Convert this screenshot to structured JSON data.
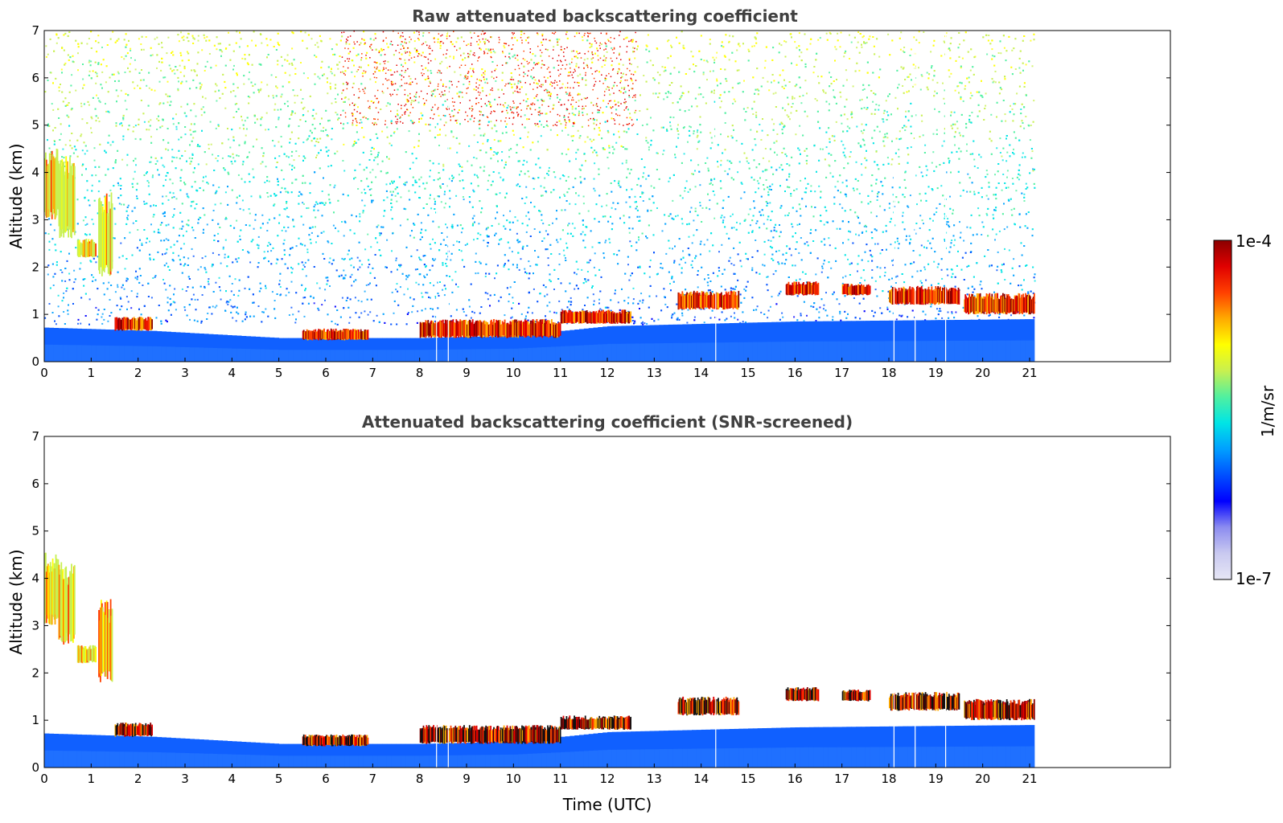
{
  "chart_data": [
    {
      "type": "heatmap",
      "title": "Raw attenuated backscattering coefficient",
      "xlabel": "",
      "ylabel": "Altitude (km)",
      "xlim": [
        0,
        24
      ],
      "ylim": [
        0,
        7
      ],
      "x_ticks": [
        "0",
        "1",
        "2",
        "3",
        "4",
        "5",
        "6",
        "7",
        "8",
        "9",
        "10",
        "11",
        "12",
        "13",
        "14",
        "15",
        "16",
        "17",
        "18",
        "19",
        "20",
        "21"
      ],
      "y_ticks": [
        "0",
        "1",
        "2",
        "3",
        "4",
        "5",
        "6",
        "7"
      ],
      "data_end_time": 21.1,
      "colorscale": "log",
      "gaps": [
        8.35,
        8.6,
        14.3,
        18.1,
        18.55,
        19.2
      ],
      "boundary_layer_top": [
        [
          0,
          0.72
        ],
        [
          2.3,
          0.65
        ],
        [
          5,
          0.5
        ],
        [
          8,
          0.5
        ],
        [
          10,
          0.55
        ],
        [
          12,
          0.75
        ],
        [
          16,
          0.85
        ],
        [
          21.1,
          0.9
        ]
      ],
      "cloud_layers": [
        {
          "t0": 0.0,
          "t1": 0.3,
          "base": 3.0,
          "top": 4.6
        },
        {
          "t0": 0.3,
          "t1": 0.65,
          "base": 2.6,
          "top": 4.4
        },
        {
          "t0": 0.7,
          "t1": 1.1,
          "base": 2.2,
          "top": 2.6
        },
        {
          "t0": 1.15,
          "t1": 1.45,
          "base": 1.8,
          "top": 3.6
        },
        {
          "t0": 1.5,
          "t1": 2.3,
          "base": 0.65,
          "top": 0.95
        },
        {
          "t0": 5.5,
          "t1": 6.9,
          "base": 0.45,
          "top": 0.7
        },
        {
          "t0": 8.0,
          "t1": 11.0,
          "base": 0.5,
          "top": 0.9
        },
        {
          "t0": 11.0,
          "t1": 12.5,
          "base": 0.8,
          "top": 1.1
        },
        {
          "t0": 13.5,
          "t1": 14.8,
          "base": 1.1,
          "top": 1.5
        },
        {
          "t0": 15.8,
          "t1": 16.5,
          "base": 1.4,
          "top": 1.7
        },
        {
          "t0": 17.0,
          "t1": 17.6,
          "base": 1.4,
          "top": 1.65
        },
        {
          "t0": 18.0,
          "t1": 19.5,
          "base": 1.2,
          "top": 1.6
        },
        {
          "t0": 19.6,
          "t1": 21.1,
          "base": 1.0,
          "top": 1.45
        }
      ]
    },
    {
      "type": "heatmap",
      "title": "Attenuated backscattering coefficient (SNR-screened)",
      "xlabel": "Time (UTC)",
      "ylabel": "Altitude (km)",
      "xlim": [
        0,
        24
      ],
      "ylim": [
        0,
        7
      ],
      "x_ticks": [
        "0",
        "1",
        "2",
        "3",
        "4",
        "5",
        "6",
        "7",
        "8",
        "9",
        "10",
        "11",
        "12",
        "13",
        "14",
        "15",
        "16",
        "17",
        "18",
        "19",
        "20",
        "21"
      ],
      "y_ticks": [
        "0",
        "1",
        "2",
        "3",
        "4",
        "5",
        "6",
        "7"
      ],
      "data_end_time": 21.1,
      "colorscale": "log"
    }
  ],
  "colorbar": {
    "label": "1/m/sr",
    "min_label": "1e-7",
    "max_label": "1e-4",
    "colors": [
      "#e6e6f5",
      "#c9c9f0",
      "#8c8cf0",
      "#0000ff",
      "#0050ff",
      "#00a0ff",
      "#00e5e5",
      "#50f0a0",
      "#c8f050",
      "#ffff00",
      "#ffaa00",
      "#ff4000",
      "#e00000",
      "#8b0000"
    ]
  }
}
